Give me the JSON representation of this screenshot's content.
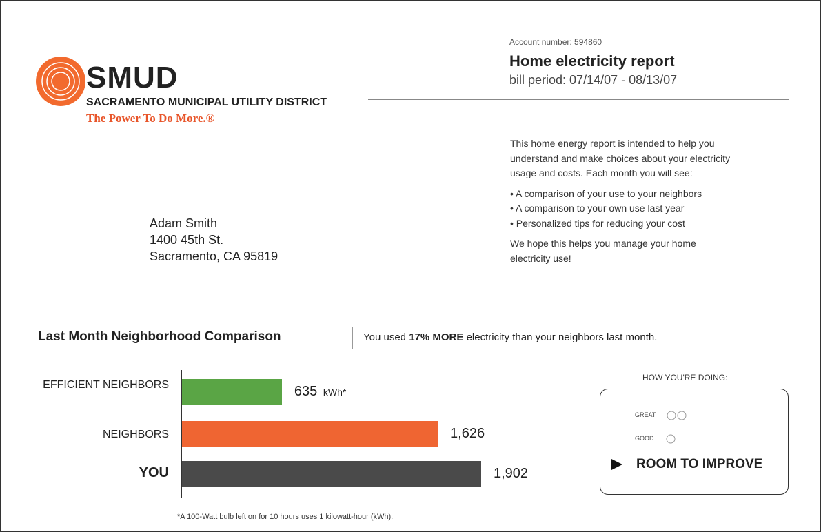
{
  "logo": {
    "name": "SMUD",
    "district": "SACRAMENTO MUNICIPAL UTILITY DISTRICT",
    "tagline": "The Power To Do More.®"
  },
  "header": {
    "account": "Account number: 594860",
    "title": "Home electricity report",
    "period": "bill period: 07/14/07 - 08/13/07"
  },
  "address": [
    "Adam Smith",
    "1400 45th St.",
    "Sacramento, CA 95819"
  ],
  "intro": {
    "text": "This home energy report is intended to help you understand and make choices about your electricity usage and costs. Each month you will see:",
    "bullets": [
      "A comparison of your use to your neighbors",
      "A comparison to your own use last year",
      "Personalized tips for reducing your cost"
    ],
    "closing": "We hope this helps you manage your home electricity use!"
  },
  "comparison": {
    "title": "Last Month Neighborhood Comparison",
    "summary": {
      "before": "You used",
      "bold": "17% MORE",
      "after": "electricity than your neighbors last month."
    },
    "unit": "kWh*",
    "footnote": "*A 100-Watt bulb left on for 10 hours uses 1 kilowatt-hour (kWh).",
    "rating": {
      "heading": "HOW YOU'RE DOING:",
      "levels": [
        "GREAT",
        "GOOD"
      ],
      "current": "ROOM TO IMPROVE"
    }
  },
  "chart_data": {
    "type": "bar",
    "orientation": "horizontal",
    "categories": [
      "EFFICIENT NEIGHBORS",
      "NEIGHBORS",
      "YOU"
    ],
    "values": [
      635,
      1626,
      1902
    ],
    "value_labels": [
      "635",
      "1,626",
      "1,902"
    ],
    "colors": [
      "#5aa545",
      "#ef6532",
      "#4a4a4a"
    ]
  }
}
